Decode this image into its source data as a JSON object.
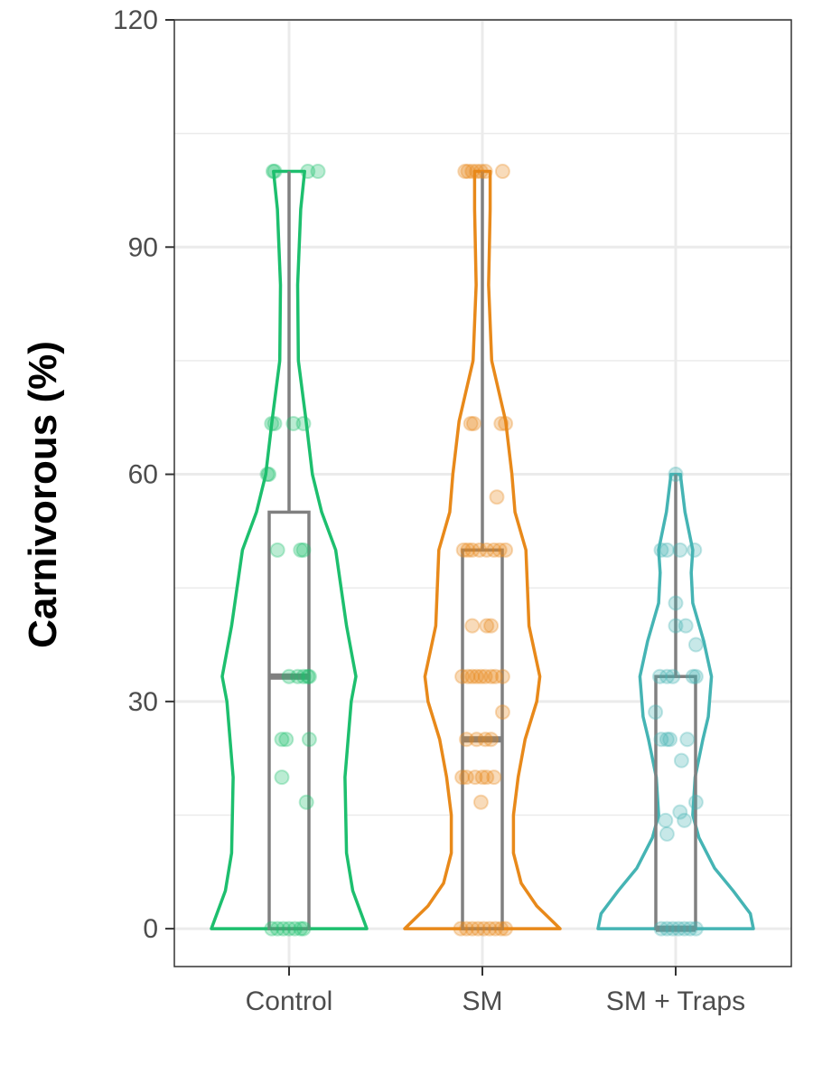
{
  "chart_data": {
    "type": "violin",
    "ylabel": "Carnivorous (%)",
    "xlabel": "",
    "ylim": [
      -5,
      120
    ],
    "yticks": [
      0,
      30,
      60,
      90,
      120
    ],
    "grid": true,
    "legend": "none",
    "categories": [
      "Control",
      "SM",
      "SM + Traps"
    ],
    "colors": [
      "#1dbf6e",
      "#e8891a",
      "#45b4b4"
    ],
    "box_color": "#808080",
    "groups": [
      {
        "category": "Control",
        "box": {
          "q1": 0,
          "median": 33.3,
          "q3": 55,
          "whisker_low": 0,
          "whisker_high": 100
        },
        "violin": {
          "y": [
            0,
            5,
            10,
            20,
            30,
            33.3,
            40,
            50,
            55,
            60,
            67,
            75,
            85,
            95,
            100
          ],
          "width": [
            1.0,
            0.82,
            0.74,
            0.72,
            0.8,
            0.86,
            0.74,
            0.6,
            0.42,
            0.3,
            0.22,
            0.12,
            0.11,
            0.15,
            0.2
          ]
        },
        "points": [
          {
            "x": -0.1,
            "y": 100
          },
          {
            "x": -0.11,
            "y": 100
          },
          {
            "x": 0.13,
            "y": 100
          },
          {
            "x": 0.2,
            "y": 100
          },
          {
            "x": -0.12,
            "y": 66.7
          },
          {
            "x": -0.1,
            "y": 66.7
          },
          {
            "x": 0.03,
            "y": 66.7
          },
          {
            "x": 0.1,
            "y": 66.7
          },
          {
            "x": -0.15,
            "y": 60
          },
          {
            "x": -0.14,
            "y": 60
          },
          {
            "x": -0.08,
            "y": 50
          },
          {
            "x": 0.08,
            "y": 50
          },
          {
            "x": 0.1,
            "y": 50
          },
          {
            "x": 0.0,
            "y": 33.3
          },
          {
            "x": 0.06,
            "y": 33.3
          },
          {
            "x": 0.1,
            "y": 33.3
          },
          {
            "x": 0.13,
            "y": 33.3
          },
          {
            "x": 0.14,
            "y": 33.3
          },
          {
            "x": -0.05,
            "y": 25
          },
          {
            "x": -0.02,
            "y": 25
          },
          {
            "x": 0.14,
            "y": 25
          },
          {
            "x": -0.05,
            "y": 20
          },
          {
            "x": 0.12,
            "y": 16.7
          },
          {
            "x": -0.12,
            "y": 0
          },
          {
            "x": -0.08,
            "y": 0
          },
          {
            "x": -0.04,
            "y": 0
          },
          {
            "x": 0.0,
            "y": 0
          },
          {
            "x": 0.04,
            "y": 0
          },
          {
            "x": 0.08,
            "y": 0
          },
          {
            "x": 0.1,
            "y": 0
          }
        ]
      },
      {
        "category": "SM",
        "box": {
          "q1": 0,
          "median": 25,
          "q3": 50,
          "whisker_low": 0,
          "whisker_high": 100
        },
        "violin": {
          "y": [
            0,
            3,
            6,
            10,
            15,
            20,
            25,
            30,
            33.3,
            40,
            45,
            50,
            55,
            60,
            67,
            75,
            85,
            95,
            100
          ],
          "width": [
            1.0,
            0.7,
            0.5,
            0.4,
            0.4,
            0.46,
            0.55,
            0.7,
            0.74,
            0.6,
            0.58,
            0.56,
            0.42,
            0.38,
            0.3,
            0.12,
            0.08,
            0.1,
            0.1
          ]
        },
        "points": [
          {
            "x": -0.12,
            "y": 100
          },
          {
            "x": -0.1,
            "y": 100
          },
          {
            "x": -0.07,
            "y": 100
          },
          {
            "x": -0.04,
            "y": 100
          },
          {
            "x": -0.01,
            "y": 100
          },
          {
            "x": 0.02,
            "y": 100
          },
          {
            "x": 0.14,
            "y": 100
          },
          {
            "x": -0.08,
            "y": 66.7
          },
          {
            "x": -0.06,
            "y": 66.7
          },
          {
            "x": 0.13,
            "y": 66.7
          },
          {
            "x": 0.16,
            "y": 66.7
          },
          {
            "x": 0.1,
            "y": 57
          },
          {
            "x": -0.13,
            "y": 50
          },
          {
            "x": -0.1,
            "y": 50
          },
          {
            "x": -0.07,
            "y": 50
          },
          {
            "x": -0.02,
            "y": 50
          },
          {
            "x": 0.03,
            "y": 50
          },
          {
            "x": 0.08,
            "y": 50
          },
          {
            "x": 0.12,
            "y": 50
          },
          {
            "x": 0.16,
            "y": 50
          },
          {
            "x": -0.07,
            "y": 40
          },
          {
            "x": 0.03,
            "y": 40
          },
          {
            "x": 0.06,
            "y": 40
          },
          {
            "x": -0.14,
            "y": 33.3
          },
          {
            "x": -0.1,
            "y": 33.3
          },
          {
            "x": -0.07,
            "y": 33.3
          },
          {
            "x": -0.04,
            "y": 33.3
          },
          {
            "x": -0.01,
            "y": 33.3
          },
          {
            "x": 0.02,
            "y": 33.3
          },
          {
            "x": 0.06,
            "y": 33.3
          },
          {
            "x": 0.09,
            "y": 33.3
          },
          {
            "x": 0.14,
            "y": 33.3
          },
          {
            "x": 0.14,
            "y": 28.6
          },
          {
            "x": -0.11,
            "y": 25
          },
          {
            "x": -0.04,
            "y": 25
          },
          {
            "x": 0.02,
            "y": 25
          },
          {
            "x": 0.06,
            "y": 25
          },
          {
            "x": -0.14,
            "y": 20
          },
          {
            "x": -0.11,
            "y": 20
          },
          {
            "x": -0.05,
            "y": 20
          },
          {
            "x": 0.0,
            "y": 20
          },
          {
            "x": 0.03,
            "y": 20
          },
          {
            "x": 0.08,
            "y": 20
          },
          {
            "x": -0.01,
            "y": 16.7
          },
          {
            "x": -0.15,
            "y": 0
          },
          {
            "x": -0.11,
            "y": 0
          },
          {
            "x": -0.07,
            "y": 0
          },
          {
            "x": -0.03,
            "y": 0
          },
          {
            "x": 0.01,
            "y": 0
          },
          {
            "x": 0.05,
            "y": 0
          },
          {
            "x": 0.09,
            "y": 0
          },
          {
            "x": 0.13,
            "y": 0
          },
          {
            "x": 0.16,
            "y": 0
          }
        ]
      },
      {
        "category": "SM + Traps",
        "box": {
          "q1": 0,
          "median": 0,
          "q3": 33.3,
          "whisker_low": 0,
          "whisker_high": 60
        },
        "violin": {
          "y": [
            0,
            2,
            5,
            8,
            12,
            15,
            20,
            25,
            28,
            33.3,
            38,
            43,
            47,
            50,
            55,
            60
          ],
          "width": [
            1.0,
            0.96,
            0.74,
            0.5,
            0.3,
            0.22,
            0.25,
            0.35,
            0.42,
            0.46,
            0.36,
            0.22,
            0.2,
            0.22,
            0.12,
            0.06
          ]
        },
        "points": [
          {
            "x": 0.0,
            "y": 60
          },
          {
            "x": -0.1,
            "y": 50
          },
          {
            "x": -0.06,
            "y": 50
          },
          {
            "x": 0.03,
            "y": 50
          },
          {
            "x": 0.13,
            "y": 50
          },
          {
            "x": 0.0,
            "y": 43
          },
          {
            "x": 0.0,
            "y": 40
          },
          {
            "x": 0.07,
            "y": 40
          },
          {
            "x": 0.14,
            "y": 37.5
          },
          {
            "x": -0.11,
            "y": 33.3
          },
          {
            "x": -0.06,
            "y": 33.3
          },
          {
            "x": -0.02,
            "y": 33.3
          },
          {
            "x": 0.12,
            "y": 33.3
          },
          {
            "x": 0.14,
            "y": 33.3
          },
          {
            "x": -0.14,
            "y": 28.6
          },
          {
            "x": -0.1,
            "y": 25
          },
          {
            "x": -0.06,
            "y": 25
          },
          {
            "x": -0.04,
            "y": 25
          },
          {
            "x": 0.08,
            "y": 25
          },
          {
            "x": 0.04,
            "y": 22.2
          },
          {
            "x": 0.14,
            "y": 16.7
          },
          {
            "x": 0.03,
            "y": 15.4
          },
          {
            "x": -0.07,
            "y": 14.3
          },
          {
            "x": 0.06,
            "y": 14.3
          },
          {
            "x": -0.06,
            "y": 12.5
          },
          {
            "x": -0.1,
            "y": 0
          },
          {
            "x": -0.06,
            "y": 0
          },
          {
            "x": -0.02,
            "y": 0
          },
          {
            "x": 0.02,
            "y": 0
          },
          {
            "x": 0.06,
            "y": 0
          },
          {
            "x": 0.1,
            "y": 0
          },
          {
            "x": 0.14,
            "y": 0
          }
        ]
      }
    ]
  }
}
